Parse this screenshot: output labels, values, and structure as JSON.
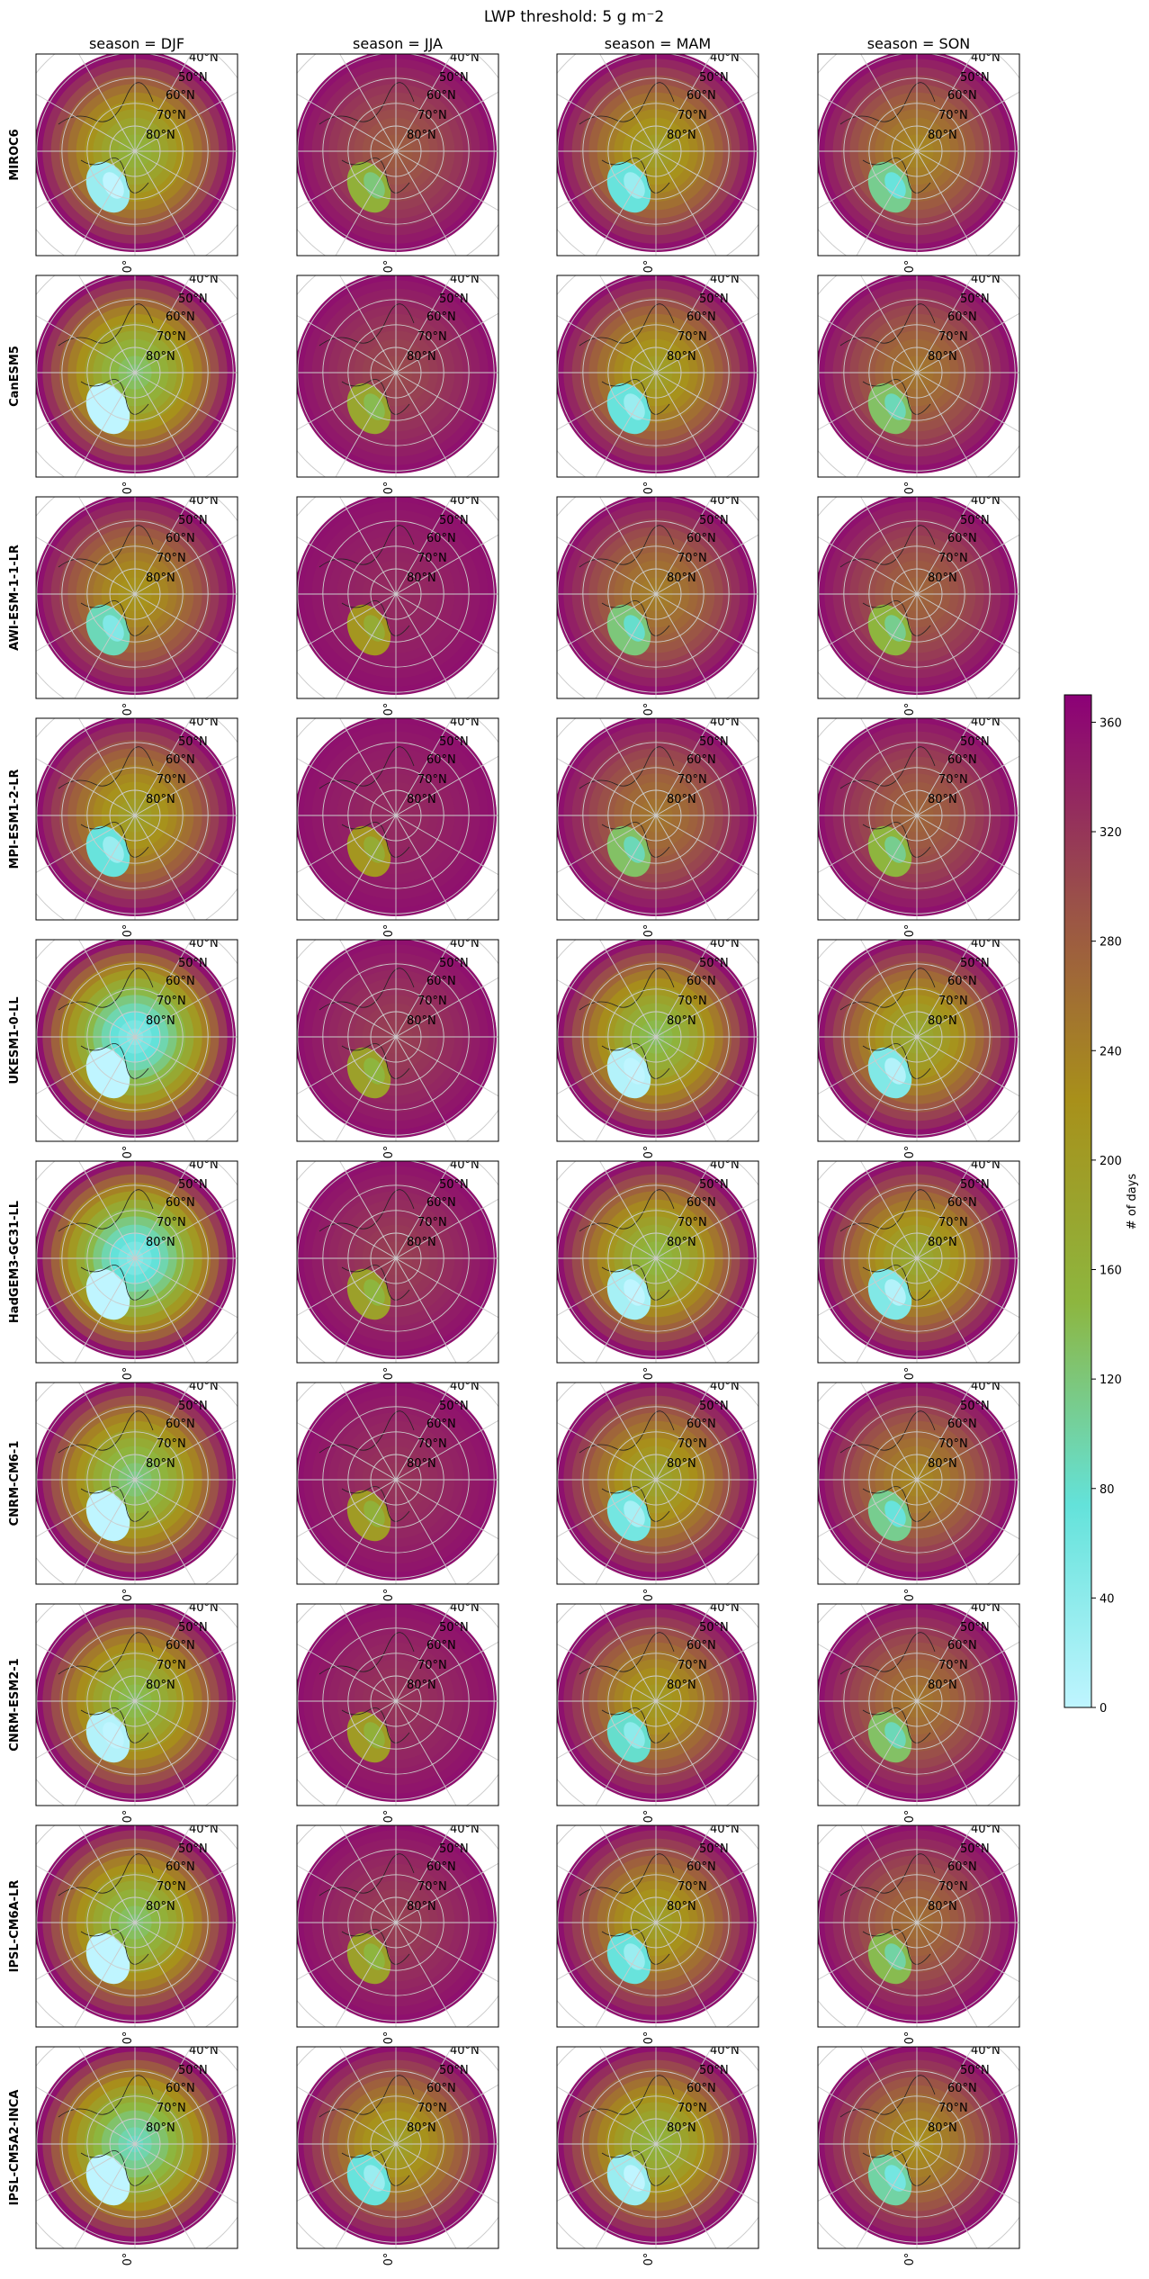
{
  "chart_data": {
    "type": "heatmap",
    "title": "LWP threshold: 5 g m⁻2",
    "projection": "north polar stereographic",
    "columns": [
      "season = DJF",
      "season = JJA",
      "season = MAM",
      "season = SON"
    ],
    "rows": [
      "MIROC6",
      "CanESM5",
      "AWI-ESM-1-1-LR",
      "MPI-ESM1-2-LR",
      "UKESM1-0-LL",
      "HadGEM3-GC31-LL",
      "CNRM-CM6-1",
      "CNRM-ESM2-1",
      "IPSL-CM6A-LR",
      "IPSL-CM5A2-INCA"
    ],
    "latitude_labels": [
      "40°N",
      "50°N",
      "60°N",
      "70°N",
      "80°N"
    ],
    "longitude_label": "0°",
    "colorbar": {
      "label": "# of days",
      "range": [
        0,
        370
      ],
      "ticks": [
        "0",
        "40",
        "80",
        "120",
        "160",
        "200",
        "240",
        "280",
        "320",
        "360"
      ],
      "tick_values": [
        0,
        40,
        80,
        120,
        160,
        200,
        240,
        280,
        320,
        360
      ],
      "colors": [
        "#bff5ff",
        "#63e2da",
        "#8db63f",
        "#a8901a",
        "#9a4f4a",
        "#8c0077"
      ]
    },
    "arctic_cloud_days_estimate": [
      [
        150,
        280,
        190,
        230
      ],
      [
        120,
        300,
        190,
        250
      ],
      [
        210,
        330,
        240,
        270
      ],
      [
        190,
        330,
        250,
        270
      ],
      [
        40,
        310,
        130,
        170
      ],
      [
        40,
        310,
        140,
        170
      ],
      [
        110,
        320,
        180,
        230
      ],
      [
        130,
        320,
        200,
        250
      ],
      [
        120,
        310,
        190,
        260
      ],
      [
        80,
        190,
        150,
        220
      ]
    ]
  }
}
